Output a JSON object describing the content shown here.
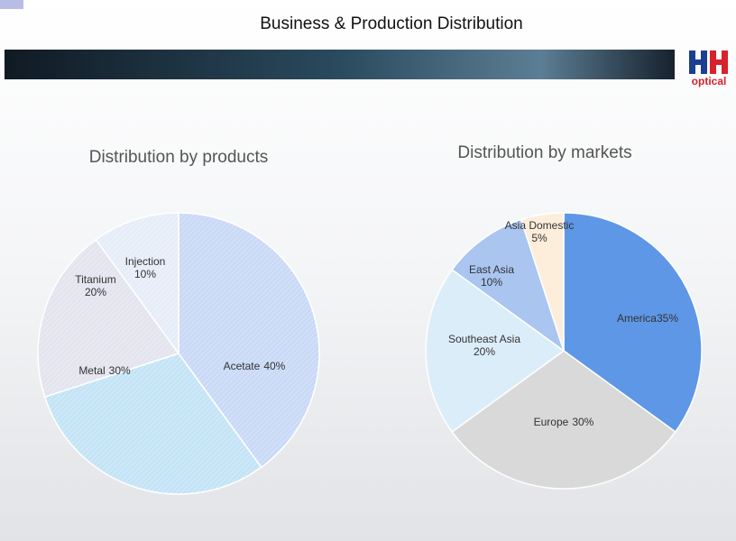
{
  "title": "Business & Production Distribution",
  "logo": "optical",
  "chart_data": [
    {
      "type": "pie",
      "title": "Distribution by products",
      "categories": [
        "Acetate",
        "Metal",
        "Titanium",
        "Injection"
      ],
      "values": [
        40,
        30,
        20,
        10
      ],
      "value_labels": [
        "40%",
        "30%",
        "20%",
        "10%"
      ],
      "colors": [
        "#c9d9f6",
        "#c4e4f6",
        "#e3e4ee",
        "#e6edf8"
      ]
    },
    {
      "type": "pie",
      "title": "Distribution by markets",
      "categories": [
        "America",
        "Europe",
        "Southeast Asia",
        "East Asia",
        "Asia Domestic"
      ],
      "values": [
        35,
        30,
        20,
        10,
        5
      ],
      "value_labels": [
        "35%",
        "30%",
        "20%",
        "10%",
        "5%"
      ],
      "colors": [
        "#5e97e6",
        "#d9d9d9",
        "#dcedfa",
        "#a9c5f0",
        "#fdeedc"
      ]
    }
  ]
}
